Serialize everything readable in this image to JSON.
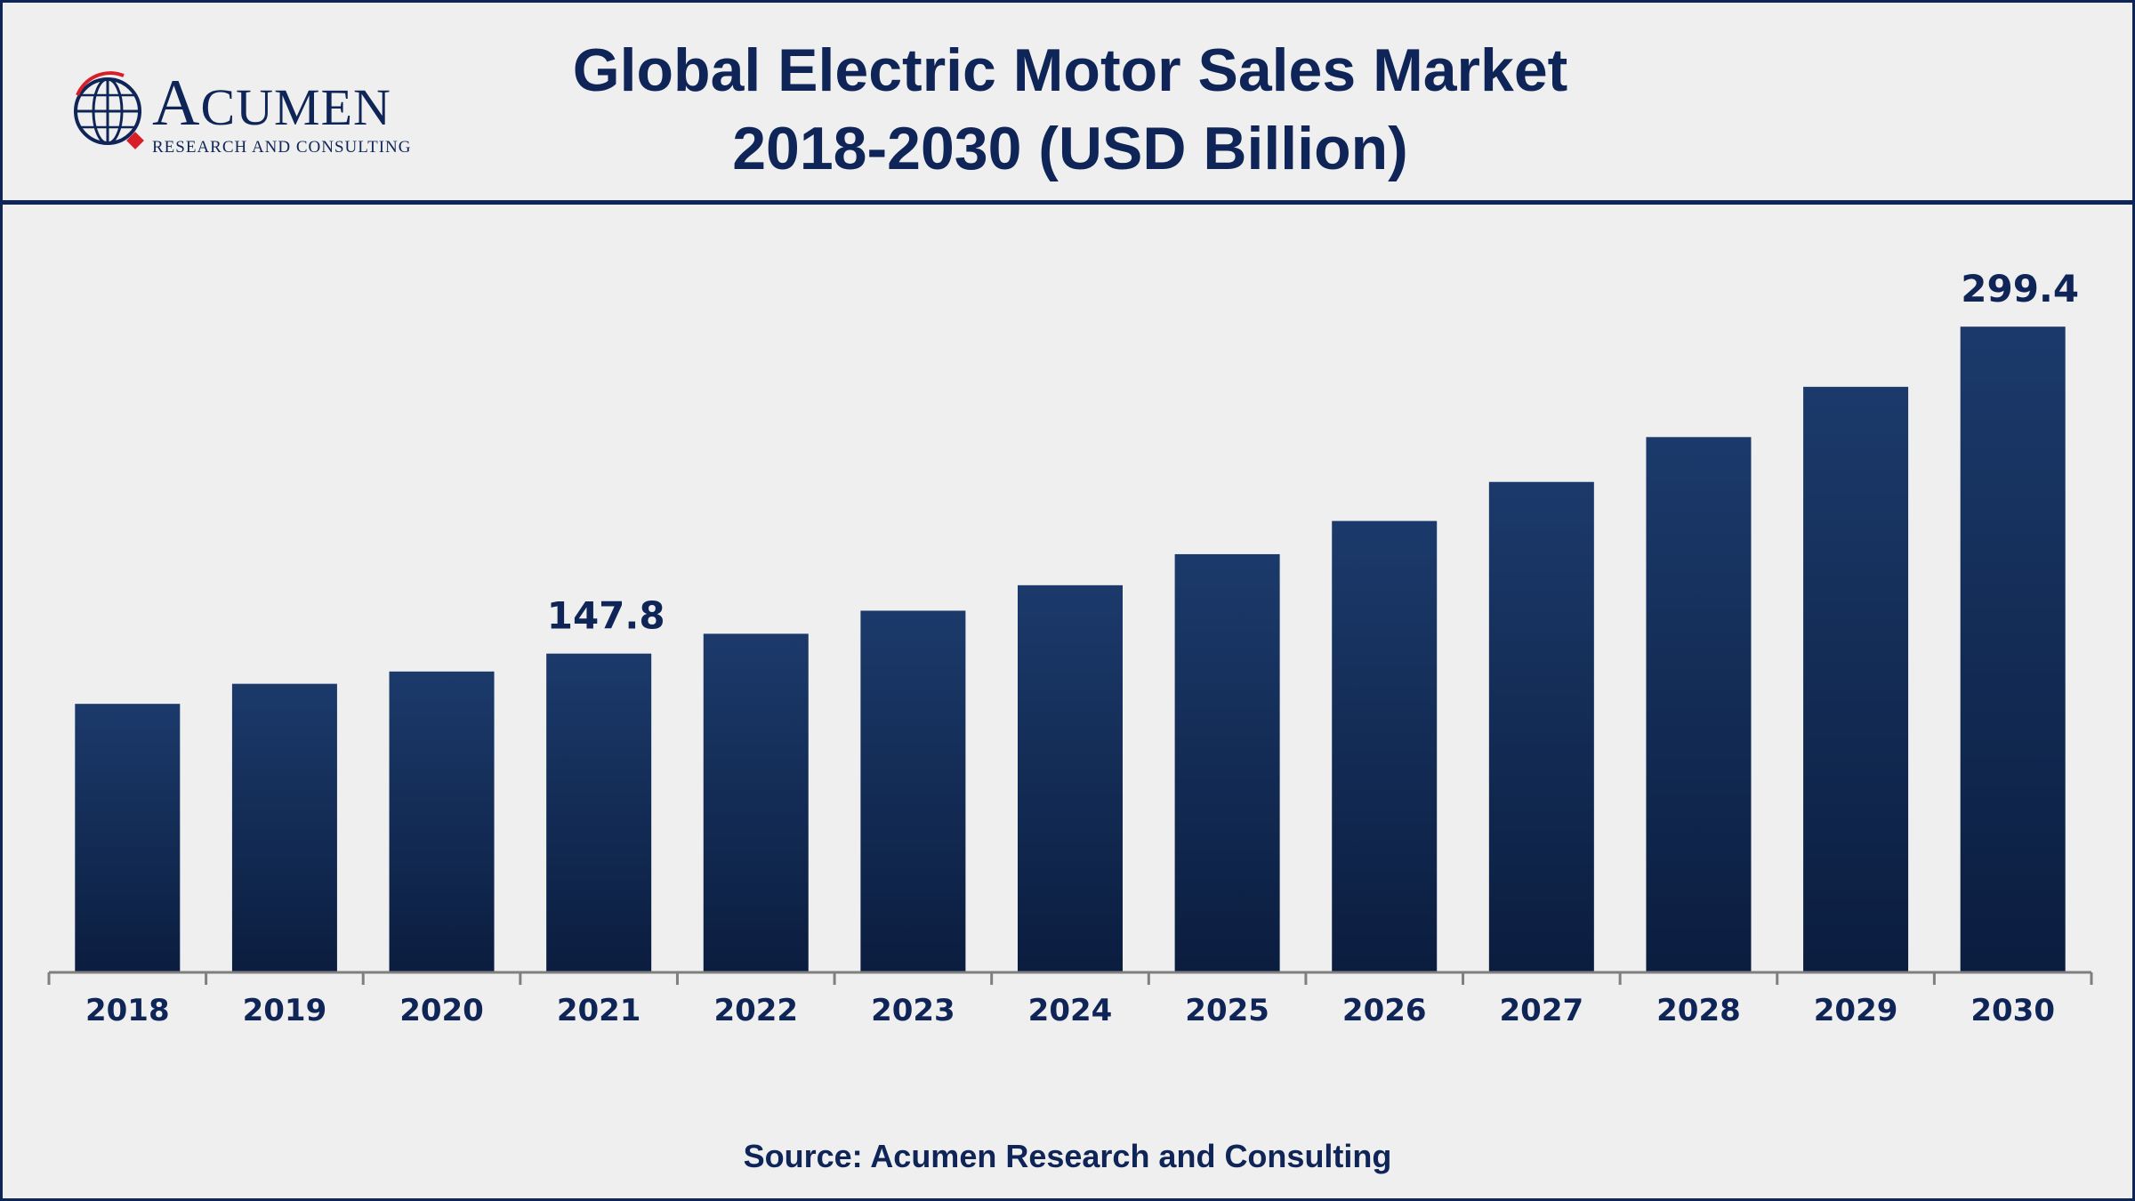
{
  "logo": {
    "name_first": "A",
    "name_rest": "CUMEN",
    "tagline": "RESEARCH AND CONSULTING"
  },
  "source": "Source: Acumen Research and Consulting",
  "colors": {
    "bar_top": "#1b3a6b",
    "bar_bottom": "#0b1d3f",
    "text": "#0f2557",
    "axis": "#7f7f7f"
  },
  "chart_data": {
    "type": "bar",
    "title_lines": [
      "Global Electric Motor Sales Market",
      "2018-2030 (USD Billion)"
    ],
    "categories": [
      "2018",
      "2019",
      "2020",
      "2021",
      "2022",
      "2023",
      "2024",
      "2025",
      "2026",
      "2027",
      "2028",
      "2029",
      "2030"
    ],
    "values": [
      124.5,
      133.8,
      139.5,
      147.8,
      157.0,
      167.7,
      179.5,
      193.9,
      209.3,
      227.4,
      248.2,
      271.5,
      299.4
    ],
    "data_labels": [
      {
        "index": 3,
        "text": "147.8"
      },
      {
        "index": 12,
        "text": "299.4"
      }
    ],
    "xlabel": "",
    "ylabel": "",
    "ylim": [
      0,
      330
    ],
    "grid": false,
    "legend": "none"
  }
}
